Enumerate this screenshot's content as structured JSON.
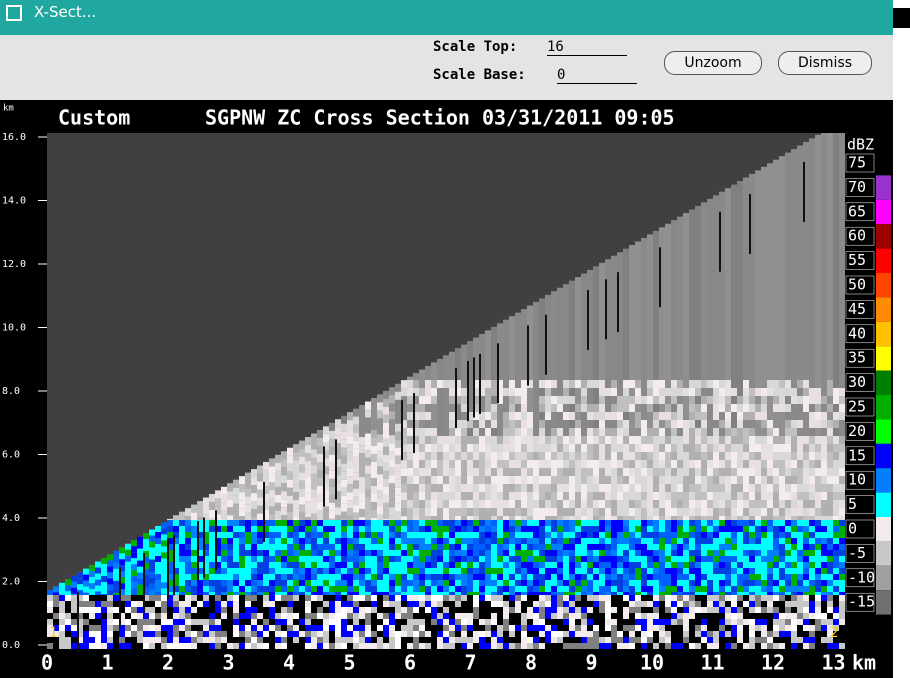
{
  "window": {
    "title": "X-Sect..."
  },
  "controls": {
    "scale_top_label": "Scale Top:",
    "scale_top": "16",
    "scale_base_label": "Scale Base:",
    "scale_base": "0",
    "buttons": [
      "Unzoom",
      "Dismiss"
    ]
  },
  "plot": {
    "left_title": "Custom",
    "title": "SGPNW ZC Cross Section 03/31/2011 09:05",
    "y_unit": "km",
    "y_labels": [
      "16.0",
      "14.0",
      "12.0",
      "10.0",
      "8.0",
      "6.0",
      "4.0",
      "2.0",
      "0.0"
    ],
    "x_labels": [
      "0",
      "1",
      "2",
      "3",
      "4",
      "5",
      "6",
      "7",
      "8",
      "9",
      "10",
      "11",
      "12",
      "13"
    ],
    "x_unit": "km",
    "end_markers": [
      "1",
      "2"
    ],
    "colorbar": {
      "unit": "dBZ",
      "labels": [
        "75",
        "70",
        "65",
        "60",
        "55",
        "50",
        "45",
        "40",
        "35",
        "30",
        "25",
        "20",
        "15",
        "10",
        "5",
        "0",
        "-5",
        "-10",
        "-15"
      ],
      "colors": [
        "#000000",
        "#9933cc",
        "#ff00ff",
        "#a00000",
        "#ff0000",
        "#ff4500",
        "#ff8c00",
        "#ffc000",
        "#ffff00",
        "#008000",
        "#00b000",
        "#00ff00",
        "#0000ff",
        "#0080ff",
        "#00ffff",
        "#f4ecec",
        "#c8c8c8",
        "#a0a0a0",
        "#707070"
      ]
    }
  }
}
